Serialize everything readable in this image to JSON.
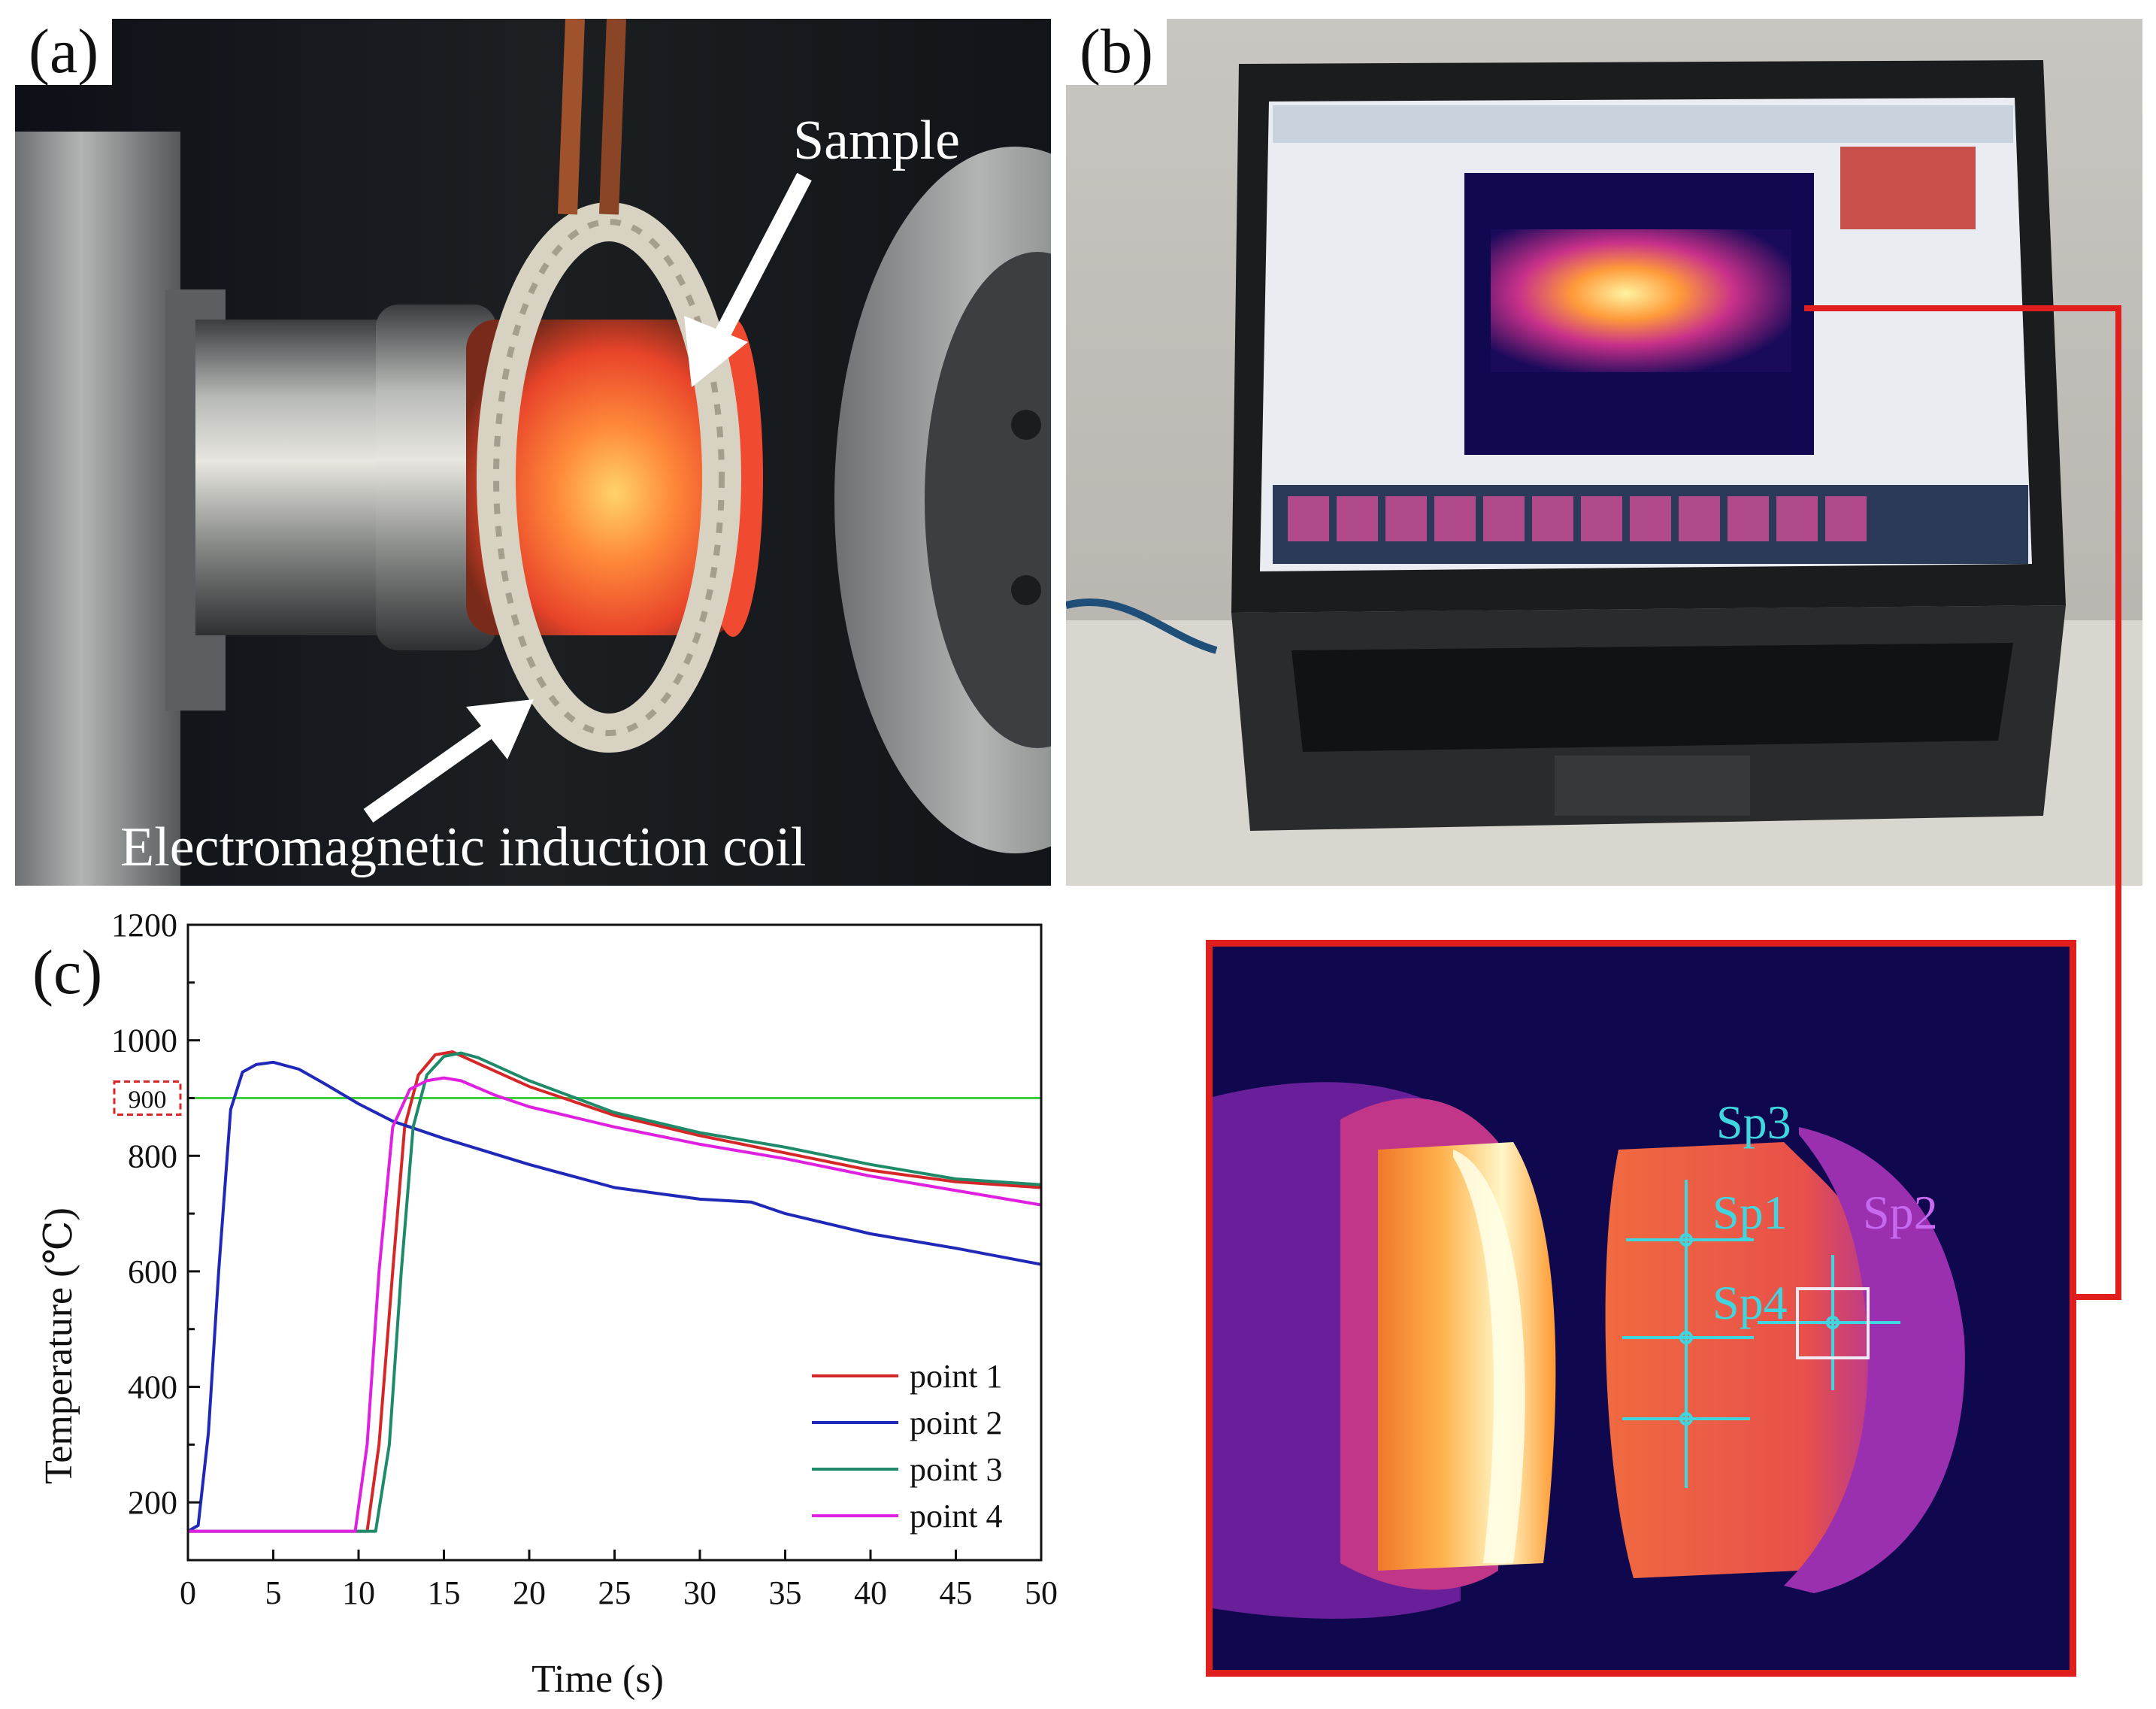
{
  "panels": {
    "a": {
      "label": "(a)",
      "sample_label": "Sample",
      "coil_label": "Electromagnetic induction coil"
    },
    "b": {
      "label": "(b)"
    },
    "c": {
      "label": "(c)"
    }
  },
  "thermal_zoom": {
    "spots": [
      "Sp3",
      "Sp1",
      "Sp2",
      "Sp4"
    ]
  },
  "colors": {
    "red_frame": "#e01e1e",
    "spot_cyan": "#3fd6e0",
    "sp2_violet": "#c86af0"
  },
  "chart_data": {
    "type": "line",
    "xlabel": "Time (s)",
    "ylabel": "Temperature (℃)",
    "xlim": [
      0,
      50
    ],
    "ylim": [
      100,
      1200
    ],
    "xticks": [
      0,
      5,
      10,
      15,
      20,
      25,
      30,
      35,
      40,
      45,
      50
    ],
    "yticks": [
      200,
      400,
      600,
      800,
      1000,
      1200
    ],
    "legend_position": "bottom-right",
    "reference_line": {
      "y": 900,
      "label": "900",
      "color": "#3ecf3e"
    },
    "series": [
      {
        "name": "point 1",
        "color": "#d62728",
        "x": [
          0,
          10.5,
          11.2,
          12,
          12.7,
          13.5,
          14.5,
          15.5,
          17,
          20,
          25,
          30,
          35,
          40,
          45,
          50
        ],
        "y": [
          150,
          150,
          300,
          600,
          850,
          940,
          975,
          980,
          960,
          920,
          870,
          835,
          805,
          775,
          755,
          745
        ]
      },
      {
        "name": "point 2",
        "color": "#2028b8",
        "x": [
          0,
          0.6,
          1.2,
          1.8,
          2.5,
          3.2,
          4,
          5,
          6.5,
          8,
          10,
          12,
          15,
          20,
          25,
          30,
          33,
          35,
          40,
          45,
          50
        ],
        "y": [
          150,
          160,
          320,
          600,
          880,
          945,
          958,
          962,
          950,
          925,
          890,
          860,
          830,
          785,
          745,
          725,
          720,
          700,
          665,
          640,
          612
        ]
      },
      {
        "name": "point 3",
        "color": "#1f8a6a",
        "x": [
          0,
          11,
          11.8,
          12.5,
          13.2,
          14,
          15,
          16,
          17,
          20,
          25,
          30,
          35,
          40,
          45,
          50
        ],
        "y": [
          150,
          150,
          300,
          600,
          850,
          940,
          972,
          978,
          970,
          930,
          875,
          840,
          815,
          785,
          760,
          750
        ]
      },
      {
        "name": "point 4",
        "color": "#e020e0",
        "x": [
          0,
          9.8,
          10.5,
          11.2,
          12,
          13,
          14,
          15,
          16,
          18,
          20,
          25,
          30,
          35,
          40,
          45,
          50
        ],
        "y": [
          150,
          150,
          300,
          600,
          850,
          915,
          930,
          935,
          930,
          905,
          885,
          850,
          820,
          795,
          765,
          740,
          715
        ]
      }
    ]
  }
}
